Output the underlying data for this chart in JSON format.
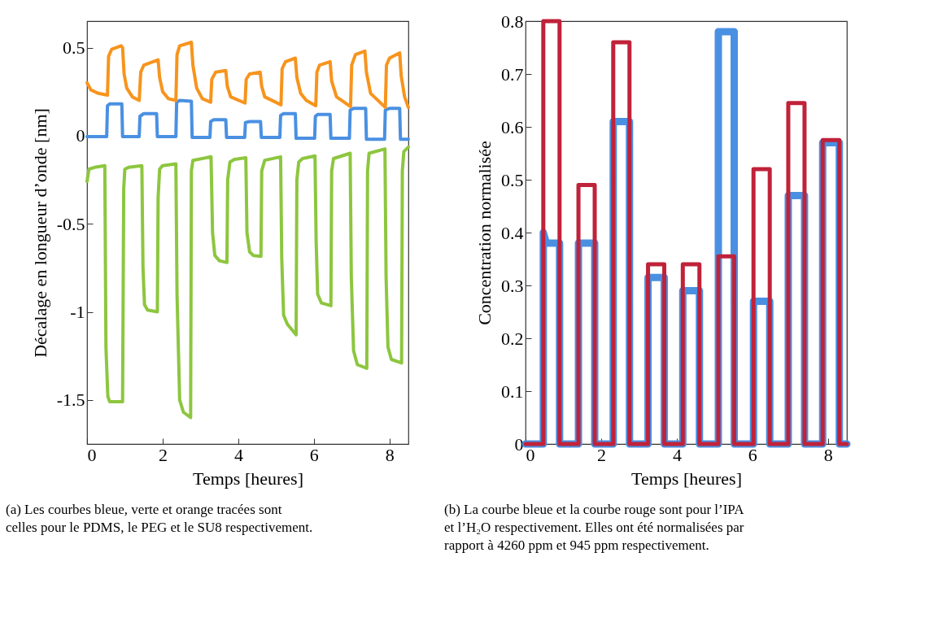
{
  "chart_data": [
    {
      "type": "line",
      "xlabel": "Temps [heures]",
      "ylabel": "Décalage en longueur d’onde [nm]",
      "xlim": [
        0,
        8.5
      ],
      "ylim": [
        -1.75,
        0.65
      ],
      "xticks": [
        0,
        2,
        4,
        6,
        8
      ],
      "yticks": [
        -1.5,
        -1,
        -0.5,
        0,
        0.5
      ],
      "grid": false,
      "marker": "none",
      "line_style": "solid",
      "annotations": [
        "(a) Les courbes bleue, verte et orange tracées sont celles pour le PDMS, le PEG et le SU8 respectivement."
      ],
      "series": [
        {
          "color": "#4a90e2",
          "x": [
            0,
            0.52,
            0.54,
            0.6,
            0.92,
            0.94,
            1.38,
            1.4,
            1.5,
            1.84,
            1.86,
            2.35,
            2.37,
            2.45,
            2.76,
            2.78,
            3.25,
            3.27,
            3.35,
            3.67,
            3.69,
            4.17,
            4.19,
            4.3,
            4.59,
            4.61,
            5.1,
            5.12,
            5.2,
            5.51,
            5.53,
            6.02,
            6.04,
            6.1,
            6.43,
            6.45,
            6.94,
            6.96,
            7.05,
            7.37,
            7.39,
            7.87,
            7.89,
            8.0,
            8.27,
            8.29,
            8.5
          ],
          "values": [
            -0.005,
            -0.005,
            0.17,
            0.18,
            0.18,
            -0.005,
            -0.005,
            0.11,
            0.125,
            0.125,
            -0.005,
            -0.005,
            0.19,
            0.2,
            0.195,
            -0.01,
            -0.01,
            0.08,
            0.09,
            0.09,
            -0.01,
            -0.01,
            0.075,
            0.08,
            0.08,
            -0.01,
            -0.01,
            0.115,
            0.125,
            0.125,
            -0.015,
            -0.015,
            0.11,
            0.12,
            0.12,
            -0.015,
            -0.015,
            0.145,
            0.155,
            0.155,
            -0.02,
            -0.02,
            0.145,
            0.155,
            0.155,
            -0.02,
            -0.02
          ]
        },
        {
          "color": "#8dc63f",
          "x": [
            0,
            0.05,
            0.2,
            0.47,
            0.5,
            0.55,
            0.6,
            0.94,
            0.97,
            1.0,
            1.1,
            1.45,
            1.48,
            1.52,
            1.6,
            1.86,
            1.88,
            1.92,
            2.0,
            2.35,
            2.38,
            2.45,
            2.55,
            2.74,
            2.76,
            2.8,
            3.28,
            3.32,
            3.38,
            3.5,
            3.7,
            3.72,
            3.78,
            3.9,
            4.2,
            4.23,
            4.3,
            4.4,
            4.6,
            4.62,
            4.7,
            5.12,
            5.15,
            5.2,
            5.3,
            5.53,
            5.55,
            5.6,
            5.7,
            6.03,
            6.06,
            6.1,
            6.2,
            6.45,
            6.47,
            6.52,
            6.96,
            6.99,
            7.05,
            7.15,
            7.4,
            7.42,
            7.46,
            7.88,
            7.91,
            7.96,
            8.05,
            8.32,
            8.34,
            8.38,
            8.5
          ],
          "values": [
            -0.26,
            -0.19,
            -0.18,
            -0.17,
            -1.2,
            -1.48,
            -1.51,
            -1.51,
            -0.3,
            -0.19,
            -0.18,
            -0.17,
            -0.75,
            -0.96,
            -0.99,
            -1.0,
            -0.35,
            -0.19,
            -0.17,
            -0.16,
            -0.9,
            -1.5,
            -1.57,
            -1.6,
            -0.2,
            -0.14,
            -0.12,
            -0.55,
            -0.68,
            -0.71,
            -0.72,
            -0.25,
            -0.15,
            -0.135,
            -0.125,
            -0.55,
            -0.66,
            -0.68,
            -0.685,
            -0.2,
            -0.14,
            -0.12,
            -0.7,
            -1.02,
            -1.07,
            -1.13,
            -0.25,
            -0.15,
            -0.13,
            -0.115,
            -0.6,
            -0.9,
            -0.95,
            -0.965,
            -0.2,
            -0.13,
            -0.1,
            -0.8,
            -1.22,
            -1.3,
            -1.32,
            -0.2,
            -0.1,
            -0.075,
            -0.8,
            -1.2,
            -1.27,
            -1.29,
            -0.2,
            -0.09,
            -0.065
          ]
        },
        {
          "color": "#f7941d",
          "x": [
            0,
            0.1,
            0.3,
            0.54,
            0.57,
            0.65,
            0.9,
            0.94,
            0.98,
            1.05,
            1.2,
            1.38,
            1.42,
            1.5,
            1.88,
            1.92,
            2.0,
            2.15,
            2.35,
            2.38,
            2.45,
            2.76,
            2.8,
            2.9,
            3.05,
            3.27,
            3.3,
            3.4,
            3.67,
            3.71,
            3.8,
            4.18,
            4.21,
            4.3,
            4.58,
            4.62,
            4.7,
            5.13,
            5.16,
            5.25,
            5.51,
            5.55,
            5.65,
            5.8,
            6.05,
            6.08,
            6.15,
            6.43,
            6.47,
            6.6,
            6.97,
            7.0,
            7.1,
            7.35,
            7.39,
            7.5,
            7.89,
            7.92,
            8.0,
            8.27,
            8.31,
            8.4,
            8.5
          ],
          "values": [
            0.3,
            0.26,
            0.24,
            0.23,
            0.45,
            0.49,
            0.51,
            0.5,
            0.35,
            0.27,
            0.22,
            0.2,
            0.36,
            0.4,
            0.43,
            0.33,
            0.25,
            0.21,
            0.2,
            0.46,
            0.51,
            0.53,
            0.4,
            0.27,
            0.21,
            0.19,
            0.32,
            0.36,
            0.37,
            0.28,
            0.22,
            0.185,
            0.32,
            0.35,
            0.36,
            0.28,
            0.22,
            0.175,
            0.38,
            0.42,
            0.44,
            0.33,
            0.24,
            0.2,
            0.17,
            0.36,
            0.4,
            0.42,
            0.31,
            0.22,
            0.165,
            0.4,
            0.46,
            0.48,
            0.36,
            0.24,
            0.16,
            0.4,
            0.44,
            0.47,
            0.34,
            0.22,
            0.16
          ]
        }
      ]
    },
    {
      "type": "line",
      "xlabel": "Temps [heures]",
      "ylabel": "Concentration normalisée",
      "xlim": [
        0,
        8.5
      ],
      "ylim": [
        0,
        0.8
      ],
      "xticks": [
        0,
        2,
        4,
        6,
        8
      ],
      "yticks": [
        0,
        0.1,
        0.2,
        0.3,
        0.4,
        0.5,
        0.6,
        0.7,
        0.8
      ],
      "grid": false,
      "marker": "none",
      "line_style": "solid",
      "annotations": [
        "(b) La courbe bleue et la courbe rouge sont pour l’IPA et l’H₂O respectivement. Elles ont été normalisées par rapport à 4260 ppm et 945 ppm respectivement."
      ],
      "series": [
        {
          "color": "#4a90e2",
          "x": [
            0,
            0.47,
            0.47,
            0.55,
            0.9,
            0.9,
            1.4,
            1.4,
            1.83,
            1.83,
            2.32,
            2.32,
            2.75,
            2.75,
            3.24,
            3.24,
            3.67,
            3.67,
            4.16,
            4.16,
            4.6,
            4.6,
            5.1,
            5.1,
            5.52,
            5.52,
            6.03,
            6.03,
            6.46,
            6.46,
            6.95,
            6.95,
            7.38,
            7.38,
            7.86,
            7.86,
            8.3,
            8.3,
            8.5
          ],
          "values": [
            0,
            0,
            0.4,
            0.38,
            0.38,
            0,
            0,
            0.38,
            0.38,
            0,
            0,
            0.61,
            0.61,
            0,
            0,
            0.315,
            0.315,
            0,
            0,
            0.29,
            0.29,
            0,
            0,
            0.78,
            0.78,
            0,
            0,
            0.27,
            0.27,
            0,
            0,
            0.47,
            0.47,
            0,
            0,
            0.57,
            0.57,
            0,
            0
          ]
        },
        {
          "color": "#c0223a",
          "x": [
            0,
            0.47,
            0.47,
            0.9,
            0.9,
            1.4,
            1.4,
            1.83,
            1.83,
            2.32,
            2.32,
            2.75,
            2.75,
            3.24,
            3.24,
            3.67,
            3.67,
            4.16,
            4.16,
            4.6,
            4.6,
            5.1,
            5.1,
            5.52,
            5.52,
            6.03,
            6.03,
            6.46,
            6.46,
            6.95,
            6.95,
            7.38,
            7.38,
            7.86,
            7.86,
            8.3,
            8.3,
            8.5
          ],
          "values": [
            0,
            0,
            0.8,
            0.8,
            0,
            0,
            0.49,
            0.49,
            0,
            0,
            0.76,
            0.76,
            0,
            0,
            0.34,
            0.34,
            0,
            0,
            0.34,
            0.34,
            0,
            0,
            0.355,
            0.355,
            0,
            0,
            0.52,
            0.52,
            0,
            0,
            0.645,
            0.645,
            0,
            0,
            0.575,
            0.575,
            0,
            0
          ]
        }
      ]
    }
  ]
}
